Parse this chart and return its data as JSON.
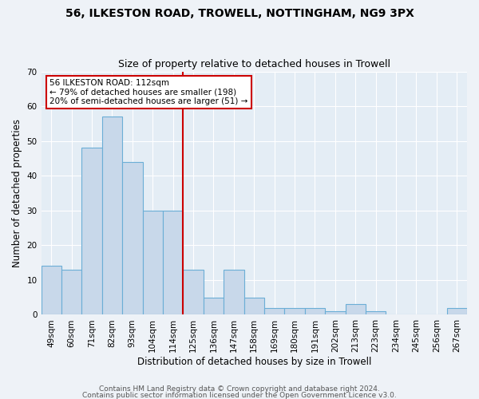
{
  "title1": "56, ILKESTON ROAD, TROWELL, NOTTINGHAM, NG9 3PX",
  "title2": "Size of property relative to detached houses in Trowell",
  "xlabel": "Distribution of detached houses by size in Trowell",
  "ylabel": "Number of detached properties",
  "bar_labels": [
    "49sqm",
    "60sqm",
    "71sqm",
    "82sqm",
    "93sqm",
    "104sqm",
    "114sqm",
    "125sqm",
    "136sqm",
    "147sqm",
    "158sqm",
    "169sqm",
    "180sqm",
    "191sqm",
    "202sqm",
    "213sqm",
    "223sqm",
    "234sqm",
    "245sqm",
    "256sqm",
    "267sqm"
  ],
  "bar_values": [
    14,
    13,
    48,
    57,
    44,
    30,
    30,
    13,
    5,
    13,
    5,
    2,
    2,
    2,
    1,
    3,
    1,
    0,
    0,
    0,
    2
  ],
  "bar_color": "#c8d8ea",
  "bar_edge_color": "#6baed6",
  "property_line_x": 6.5,
  "ylim": [
    0,
    70
  ],
  "annotation_title": "56 ILKESTON ROAD: 112sqm",
  "annotation_line1": "← 79% of detached houses are smaller (198)",
  "annotation_line2": "20% of semi-detached houses are larger (51) →",
  "annotation_box_color": "#ffffff",
  "annotation_box_edge": "#cc0000",
  "red_line_color": "#cc0000",
  "footer1": "Contains HM Land Registry data © Crown copyright and database right 2024.",
  "footer2": "Contains public sector information licensed under the Open Government Licence v3.0.",
  "background_color": "#eef2f7",
  "plot_background": "#e4edf5",
  "grid_color": "#ffffff",
  "title_fontsize": 10,
  "subtitle_fontsize": 9,
  "axis_label_fontsize": 8.5,
  "tick_fontsize": 7.5,
  "annotation_fontsize": 7.5,
  "footer_fontsize": 6.5
}
